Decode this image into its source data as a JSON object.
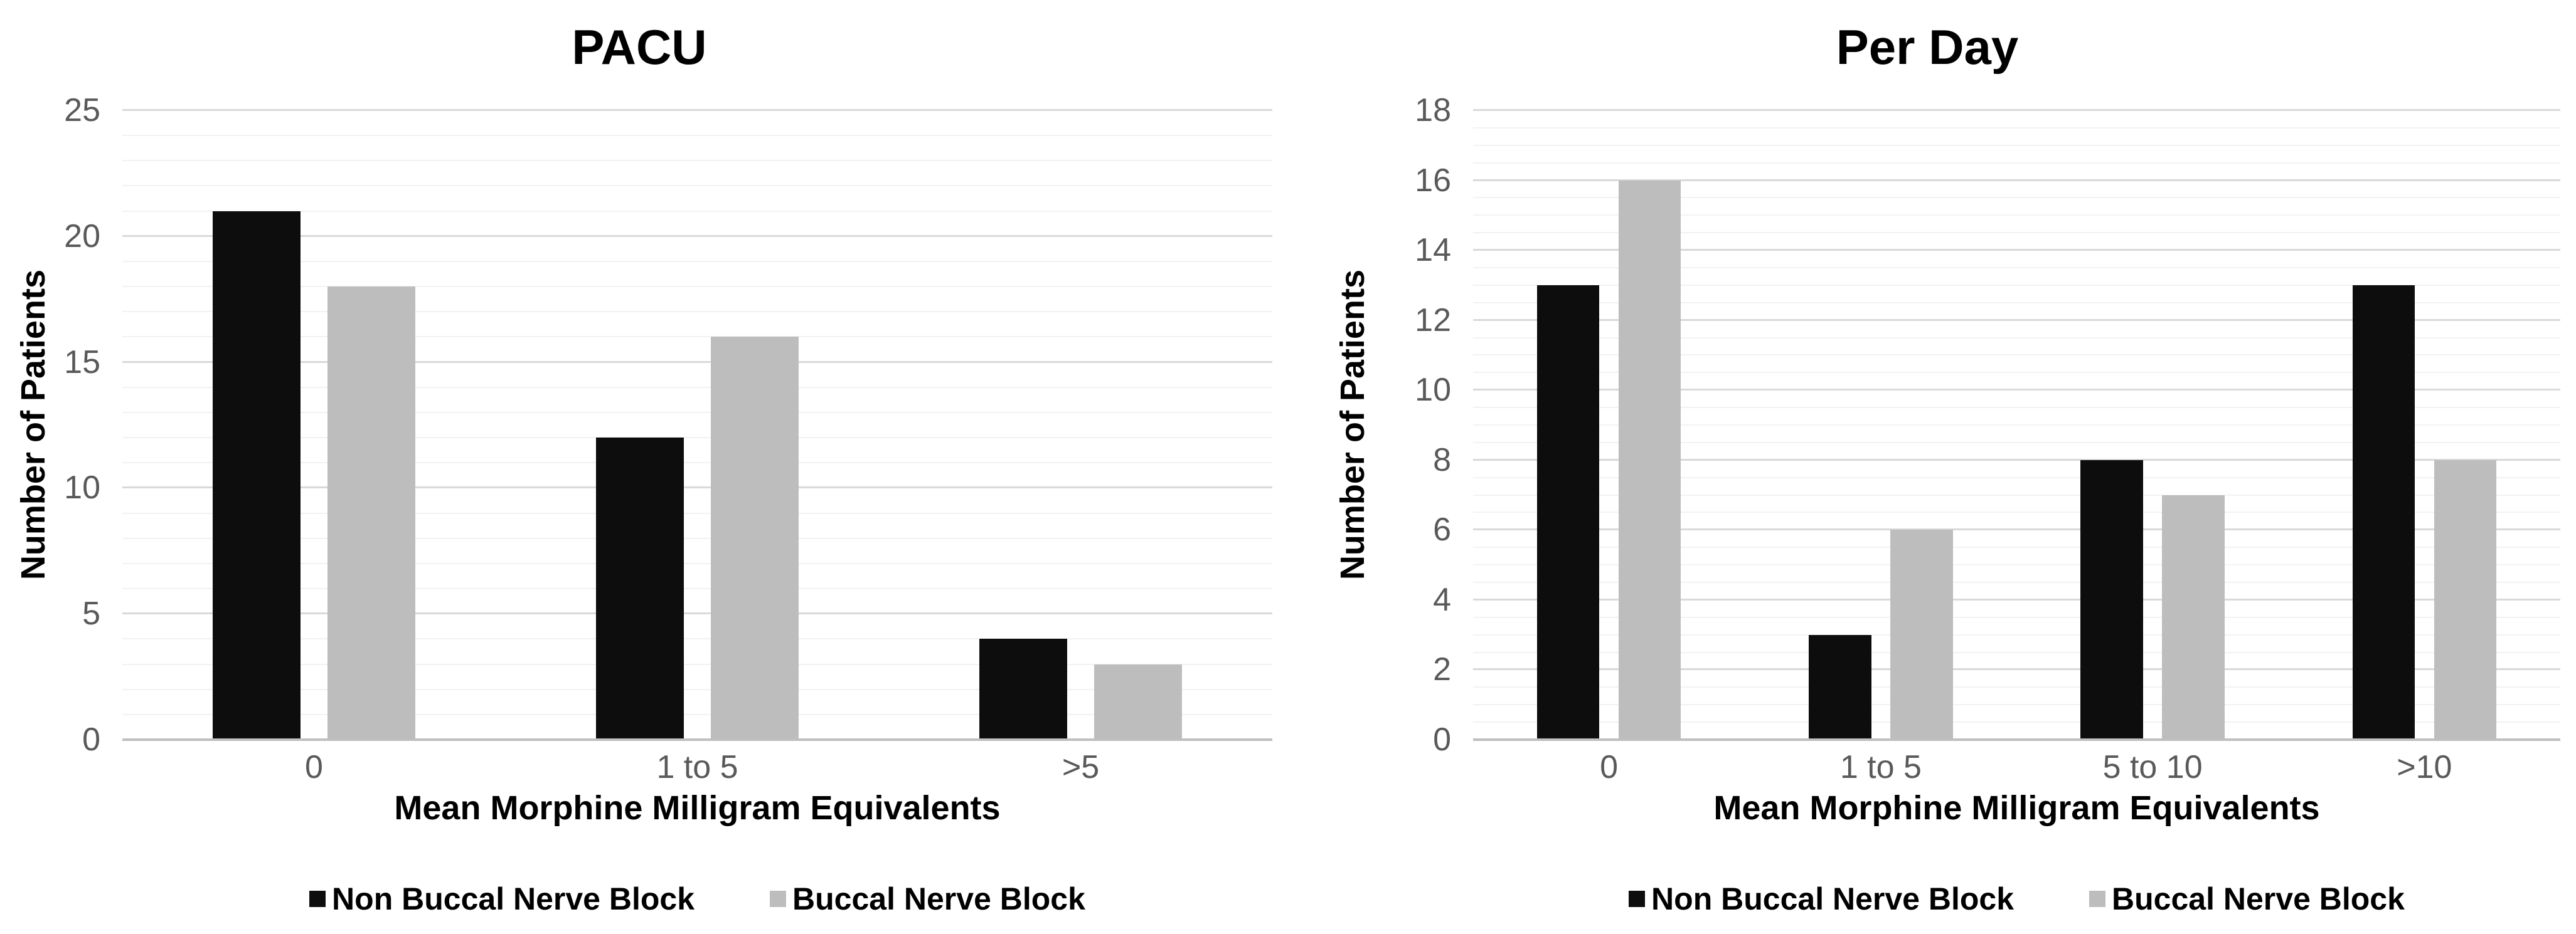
{
  "figure": {
    "background": "#ffffff"
  },
  "styles": {
    "bar_black": "#0d0d0d",
    "bar_gray": "#bdbdbd",
    "major_gridline": "#d9d9d9",
    "minor_gridline": "#f2f2f2",
    "axis_line": "#bfbfbf",
    "tick_label_color": "#595959",
    "text_color": "#000000"
  },
  "chart_data": [
    {
      "type": "bar",
      "title": "PACU",
      "xlabel": "Mean Morphine Milligram Equivalents",
      "ylabel": "Number of Patients",
      "categories": [
        "0",
        "1 to 5",
        ">5"
      ],
      "series": [
        {
          "name": "Non Buccal Nerve Block",
          "color": "#0d0d0d",
          "values": [
            21,
            12,
            4
          ]
        },
        {
          "name": "Buccal Nerve Block",
          "color": "#bdbdbd",
          "values": [
            18,
            16,
            3
          ]
        }
      ],
      "ylim": [
        0,
        25
      ],
      "yticks": [
        "0",
        "5",
        "10",
        "15",
        "20",
        "25"
      ],
      "ytick_step": 5,
      "minor_gridline_step": 1,
      "grid": true,
      "legend_position": "bottom"
    },
    {
      "type": "bar",
      "title": "Per Day",
      "xlabel": "Mean Morphine Milligram Equivalents",
      "ylabel": "Number of Patients",
      "categories": [
        "0",
        "1 to 5",
        "5 to 10",
        ">10"
      ],
      "series": [
        {
          "name": "Non Buccal Nerve Block",
          "color": "#0d0d0d",
          "values": [
            13,
            3,
            8,
            13
          ]
        },
        {
          "name": "Buccal Nerve Block",
          "color": "#bdbdbd",
          "values": [
            16,
            6,
            7,
            8
          ]
        }
      ],
      "ylim": [
        0,
        18
      ],
      "yticks": [
        "0",
        "2",
        "4",
        "6",
        "8",
        "10",
        "12",
        "14",
        "16",
        "18"
      ],
      "ytick_step": 2,
      "minor_gridline_step": 0.5,
      "grid": true,
      "legend_position": "bottom"
    }
  ]
}
